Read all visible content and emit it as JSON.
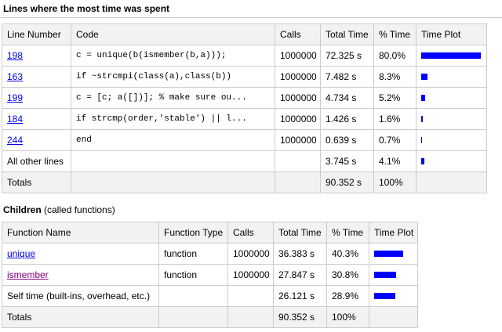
{
  "heading": "Lines where the most time was spent",
  "lines_table": {
    "headers": [
      "Line Number",
      "Code",
      "Calls",
      "Total Time",
      "% Time",
      "Time Plot"
    ],
    "rows": [
      [
        "198",
        "c = unique(b(ismember(b,a)));",
        "1000000",
        "72.325 s",
        "80.0%"
      ],
      [
        "163",
        "if ~strcmpi(class(a),class(b))",
        "1000000",
        "7.482 s",
        "8.3%"
      ],
      [
        "199",
        "c = [c; a([])]; % make sure ou...",
        "1000000",
        "4.734 s",
        "5.2%"
      ],
      [
        "184",
        "if strcmp(order,'stable') || l...",
        "1000000",
        "1.426 s",
        "1.6%"
      ],
      [
        "244",
        "end",
        "1000000",
        "0.639 s",
        "0.7%"
      ],
      [
        "All other lines",
        null,
        null,
        "3.745 s",
        "4.1%"
      ]
    ],
    "link_colors": [
      "#0000ee",
      "#0000ee",
      "#0000ee",
      "#0000ee",
      "#0000ee",
      null
    ],
    "totals": [
      "Totals",
      null,
      null,
      "90.352 s",
      "100%"
    ]
  },
  "children_heading": {
    "title": "Children",
    "subtitle": "(called functions)"
  },
  "children_table": {
    "headers": [
      "Function Name",
      "Function Type",
      "Calls",
      "Total Time",
      "% Time",
      "Time Plot"
    ],
    "rows": [
      [
        "unique",
        "function",
        "1000000",
        "36.383 s",
        "40.3%"
      ],
      [
        "ismember",
        "function",
        "1000000",
        "27.847 s",
        "30.8%"
      ],
      [
        "Self time (built-ins, overhead, etc.)",
        null,
        null,
        "26.121 s",
        "28.9%"
      ]
    ],
    "link_colors": [
      "#0000ee",
      "#800080",
      null
    ],
    "totals": [
      "Totals",
      null,
      null,
      "90.352 s",
      "100%"
    ]
  },
  "bar_color": "#0000ff"
}
